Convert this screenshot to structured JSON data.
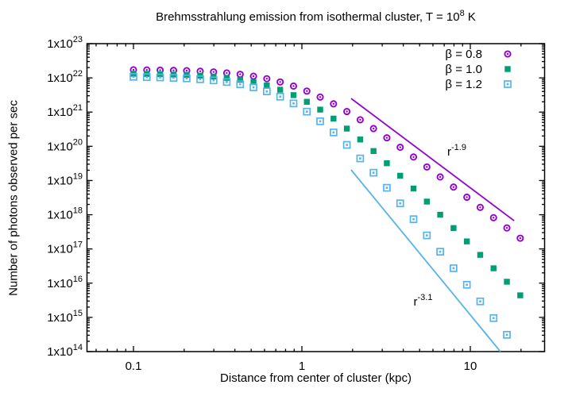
{
  "title": {
    "prefix": "Brehmsstrahlung emission from isothermal cluster, T = 10",
    "sup": "8",
    "suffix": " K"
  },
  "axes": {
    "xlabel": "Distance from center of cluster (kpc)",
    "ylabel": "Number of photons observed per sec",
    "x_tick_labels": [
      "0.1",
      "1",
      "10"
    ],
    "x_tick_values": [
      0.1,
      1,
      10
    ],
    "y_tick_prefix": "1x10",
    "y_tick_exponents": [
      14,
      15,
      16,
      17,
      18,
      19,
      20,
      21,
      22,
      23
    ]
  },
  "chart_data": {
    "type": "scatter",
    "title": "Brehmsstrahlung emission from isothermal cluster, T = 10^8 K",
    "xlabel": "Distance from center of cluster (kpc)",
    "ylabel": "Number of photons observed per sec",
    "x_scale": "log",
    "y_scale": "log",
    "xlim": [
      0.053,
      27.5
    ],
    "ylim": [
      100000000000000.0,
      1e+23
    ],
    "grid": false,
    "legend_position": "top-right",
    "x": [
      0.1,
      0.12,
      0.144,
      0.173,
      0.207,
      0.249,
      0.299,
      0.358,
      0.43,
      0.516,
      0.619,
      0.743,
      0.892,
      1.07,
      1.284,
      1.541,
      1.849,
      2.219,
      2.662,
      3.195,
      3.834,
      4.601,
      5.521,
      6.625,
      7.95,
      9.54,
      11.45,
      13.74,
      16.49,
      19.79
    ],
    "series": [
      {
        "name": "β = 0.8",
        "color": "#9400d3",
        "marker": "circle-dot",
        "values": [
          1.72e+22,
          1.7e+22,
          1.68e+22,
          1.65e+22,
          1.62e+22,
          1.56e+22,
          1.49e+22,
          1.39e+22,
          1.27e+22,
          1.12e+22,
          9.45e+21,
          7.59e+21,
          5.76e+21,
          4.11e+21,
          2.75e+21,
          1.74e+21,
          1.04e+21,
          5.96e+20,
          3.3e+20,
          1.77e+20,
          9.35e+19,
          4.86e+19,
          2.49e+19,
          1.27e+19,
          6.43e+18,
          3.25e+18,
          1.64e+18,
          8.19e+17,
          4.11e+17,
          2.06e+17
        ]
      },
      {
        "name": "β = 1.0",
        "color": "#009e73",
        "marker": "filled-square",
        "values": [
          1.32e+22,
          1.3e+22,
          1.28e+22,
          1.25e+22,
          1.22e+22,
          1.16e+22,
          1.09e+22,
          9.98e+21,
          8.84e+21,
          7.48e+21,
          6e+21,
          4.5e+21,
          3.13e+21,
          2e+21,
          1.18e+21,
          6.45e+20,
          3.29e+20,
          1.58e+20,
          7.26e+19,
          3.2e+19,
          1.38e+19,
          5.84e+18,
          2.42e+18,
          1e+18,
          4.08e+17,
          1.66e+17,
          6.71e+16,
          2.72e+16,
          1.1e+16,
          4410000000000000.0
        ]
      },
      {
        "name": "β = 1.2",
        "color": "#56b4e9",
        "marker": "open-square-dot",
        "values": [
          1.07e+22,
          1.05e+22,
          1.03e+22,
          1e+22,
          9.65e+21,
          9.13e+21,
          8.44e+21,
          7.56e+21,
          6.5e+21,
          5.29e+21,
          4.02e+21,
          2.82e+21,
          1.79e+21,
          1.03e+21,
          5.37e+20,
          2.54e+20,
          1.1e+20,
          4.42e+19,
          1.69e+19,
          6.13e+18,
          2.15e+18,
          7.4e+17,
          2.49e+17,
          8.3e+16,
          2.73e+16,
          8970000000000000.0,
          2930000000000000.0,
          952000000000000.0,
          309000000000000.0,
          99000000000000.0
        ]
      }
    ],
    "guide_lines": [
      {
        "label": "r^-1.9",
        "color": "#9400d3",
        "x": [
          1.96,
          18.2
        ],
        "y": [
          2.5e+21,
          6.7e+17
        ]
      },
      {
        "label": "r^-3.1",
        "color": "#56b4e9",
        "x": [
          1.96,
          15.1
        ],
        "y": [
          2.05e+19,
          100000000000000.0
        ]
      }
    ],
    "annotations": [
      {
        "base": "r",
        "sup": "-1.9",
        "x": 7.3,
        "y": 5.4e+19
      },
      {
        "base": "r",
        "sup": "-3.1",
        "x": 4.6,
        "y": 2200000000000000.0
      }
    ],
    "legend": {
      "entries": [
        "β = 0.8",
        "β = 1.0",
        "β = 1.2"
      ]
    }
  }
}
